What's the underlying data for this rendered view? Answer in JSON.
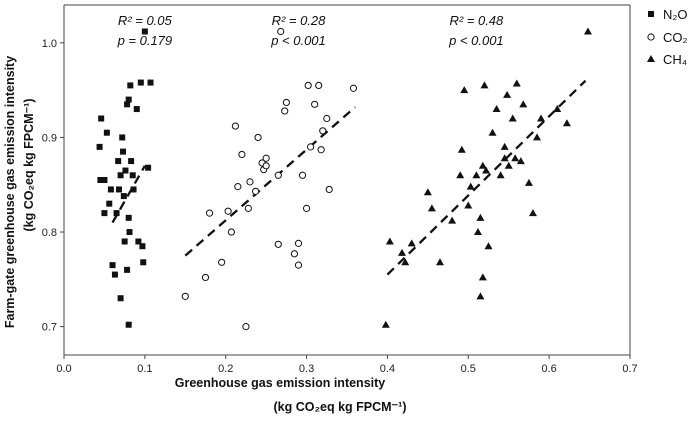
{
  "chart_data": {
    "type": "scatter",
    "x_axis": {
      "label_line1": "Greenhouse gas emission intensity",
      "label_line2": "(kg CO₂eq kg FPCM⁻¹)",
      "ticks": [
        "0.0",
        "0.1",
        "0.2",
        "0.3",
        "0.4",
        "0.5",
        "0.6",
        "0.7"
      ],
      "range": [
        0.0,
        0.7
      ]
    },
    "y_axis": {
      "label_line1": "Farm-gate greenhouse gas emission intensity",
      "label_line2": "(kg CO₂eq kg FPCM⁻¹)",
      "ticks": [
        "0.7",
        "0.8",
        "0.9",
        "1.0"
      ],
      "range": [
        0.67,
        1.04
      ]
    },
    "grid": false,
    "legend_position": "right",
    "series": [
      {
        "name": "N₂O",
        "marker": "square",
        "stats": {
          "r2": "R² = 0.05",
          "p": "p = 0.179"
        },
        "trend": {
          "x1": 0.06,
          "y1": 0.81,
          "x2": 0.1,
          "y2": 0.87
        },
        "points": [
          [
            0.044,
            0.89
          ],
          [
            0.045,
            0.855
          ],
          [
            0.046,
            0.92
          ],
          [
            0.05,
            0.855
          ],
          [
            0.05,
            0.82
          ],
          [
            0.053,
            0.905
          ],
          [
            0.056,
            0.83
          ],
          [
            0.058,
            0.845
          ],
          [
            0.06,
            0.765
          ],
          [
            0.063,
            0.755
          ],
          [
            0.065,
            0.82
          ],
          [
            0.068,
            0.845
          ],
          [
            0.07,
            0.86
          ],
          [
            0.07,
            0.73
          ],
          [
            0.072,
            0.9
          ],
          [
            0.073,
            0.885
          ],
          [
            0.075,
            0.79
          ],
          [
            0.076,
            0.865
          ],
          [
            0.078,
            0.935
          ],
          [
            0.078,
            0.76
          ],
          [
            0.08,
            0.94
          ],
          [
            0.08,
            0.815
          ],
          [
            0.081,
            0.8
          ],
          [
            0.082,
            0.955
          ],
          [
            0.083,
            0.875
          ],
          [
            0.085,
            0.86
          ],
          [
            0.086,
            0.845
          ],
          [
            0.09,
            0.93
          ],
          [
            0.092,
            0.79
          ],
          [
            0.095,
            0.958
          ],
          [
            0.097,
            0.785
          ],
          [
            0.098,
            0.768
          ],
          [
            0.1,
            1.012
          ],
          [
            0.104,
            0.868
          ],
          [
            0.107,
            0.958
          ],
          [
            0.08,
            0.702
          ],
          [
            0.067,
            0.875
          ],
          [
            0.074,
            0.838
          ]
        ]
      },
      {
        "name": "CO₂",
        "marker": "circle",
        "stats": {
          "r2": "R² = 0.28",
          "p": "p < 0.001"
        },
        "trend": {
          "x1": 0.15,
          "y1": 0.775,
          "x2": 0.36,
          "y2": 0.932
        },
        "points": [
          [
            0.15,
            0.732
          ],
          [
            0.175,
            0.752
          ],
          [
            0.18,
            0.82
          ],
          [
            0.195,
            0.768
          ],
          [
            0.203,
            0.822
          ],
          [
            0.207,
            0.8
          ],
          [
            0.212,
            0.912
          ],
          [
            0.215,
            0.848
          ],
          [
            0.22,
            0.882
          ],
          [
            0.225,
            0.7
          ],
          [
            0.228,
            0.825
          ],
          [
            0.23,
            0.853
          ],
          [
            0.237,
            0.843
          ],
          [
            0.24,
            0.9
          ],
          [
            0.245,
            0.873
          ],
          [
            0.247,
            0.866
          ],
          [
            0.25,
            0.878
          ],
          [
            0.25,
            0.87
          ],
          [
            0.265,
            0.86
          ],
          [
            0.265,
            0.787
          ],
          [
            0.268,
            1.012
          ],
          [
            0.273,
            0.928
          ],
          [
            0.275,
            0.937
          ],
          [
            0.285,
            0.777
          ],
          [
            0.29,
            0.765
          ],
          [
            0.29,
            0.788
          ],
          [
            0.295,
            0.86
          ],
          [
            0.3,
            0.825
          ],
          [
            0.302,
            0.955
          ],
          [
            0.305,
            0.89
          ],
          [
            0.31,
            0.935
          ],
          [
            0.315,
            0.955
          ],
          [
            0.318,
            0.887
          ],
          [
            0.32,
            0.907
          ],
          [
            0.325,
            0.92
          ],
          [
            0.328,
            0.845
          ],
          [
            0.358,
            0.952
          ]
        ]
      },
      {
        "name": "CH₄",
        "marker": "triangle",
        "stats": {
          "r2": "R² = 0.48",
          "p": "p < 0.001"
        },
        "trend": {
          "x1": 0.4,
          "y1": 0.755,
          "x2": 0.645,
          "y2": 0.96
        },
        "points": [
          [
            0.398,
            0.702
          ],
          [
            0.403,
            0.79
          ],
          [
            0.418,
            0.778
          ],
          [
            0.422,
            0.768
          ],
          [
            0.43,
            0.788
          ],
          [
            0.45,
            0.842
          ],
          [
            0.455,
            0.825
          ],
          [
            0.465,
            0.768
          ],
          [
            0.48,
            0.812
          ],
          [
            0.49,
            0.86
          ],
          [
            0.492,
            0.887
          ],
          [
            0.495,
            0.95
          ],
          [
            0.5,
            0.828
          ],
          [
            0.503,
            0.848
          ],
          [
            0.51,
            0.86
          ],
          [
            0.512,
            0.8
          ],
          [
            0.515,
            0.732
          ],
          [
            0.515,
            0.815
          ],
          [
            0.518,
            0.87
          ],
          [
            0.518,
            0.752
          ],
          [
            0.52,
            0.955
          ],
          [
            0.522,
            0.865
          ],
          [
            0.525,
            0.785
          ],
          [
            0.53,
            0.905
          ],
          [
            0.535,
            0.93
          ],
          [
            0.54,
            0.86
          ],
          [
            0.545,
            0.878
          ],
          [
            0.545,
            0.89
          ],
          [
            0.548,
            0.945
          ],
          [
            0.55,
            0.87
          ],
          [
            0.555,
            0.92
          ],
          [
            0.558,
            0.878
          ],
          [
            0.56,
            0.957
          ],
          [
            0.565,
            0.875
          ],
          [
            0.568,
            0.935
          ],
          [
            0.575,
            0.852
          ],
          [
            0.58,
            0.82
          ],
          [
            0.585,
            0.9
          ],
          [
            0.59,
            0.92
          ],
          [
            0.61,
            0.93
          ],
          [
            0.622,
            0.915
          ],
          [
            0.648,
            1.012
          ]
        ]
      }
    ]
  }
}
